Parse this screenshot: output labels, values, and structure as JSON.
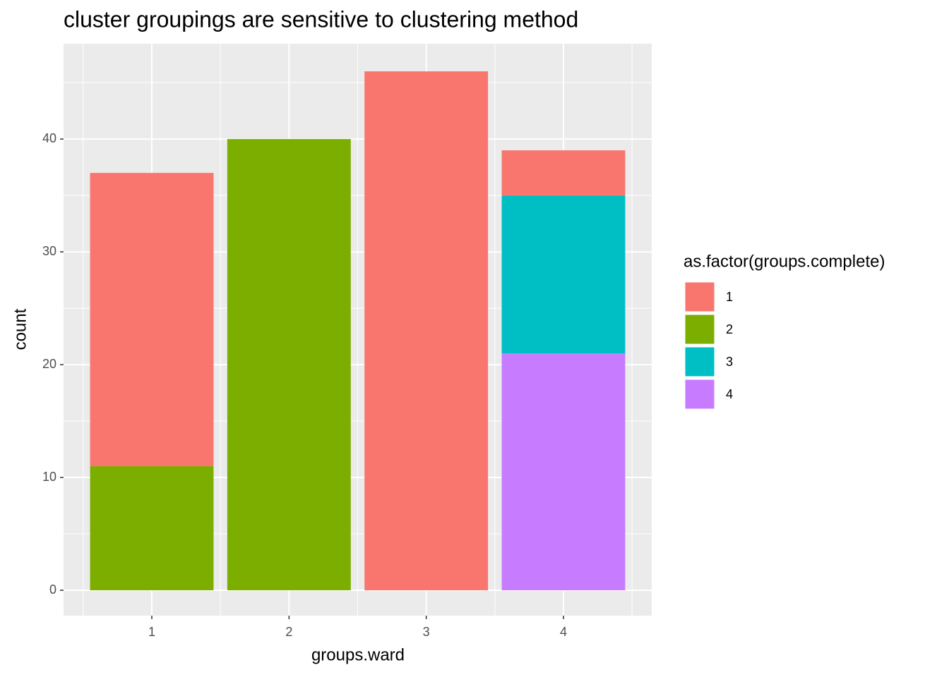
{
  "chart_data": {
    "type": "stacked_bar",
    "title": "cluster groupings are sensitive to clustering method",
    "x_label": "groups.ward",
    "y_label": "count",
    "categories": [
      "1",
      "2",
      "3",
      "4"
    ],
    "series": [
      {
        "name": "1",
        "color": "#F8766D",
        "values": [
          26,
          0,
          46,
          4
        ]
      },
      {
        "name": "2",
        "color": "#7CAE00",
        "values": [
          11,
          40,
          0,
          0
        ]
      },
      {
        "name": "3",
        "color": "#00BFC4",
        "values": [
          0,
          0,
          0,
          14
        ]
      },
      {
        "name": "4",
        "color": "#C77CFF",
        "values": [
          0,
          0,
          0,
          21
        ]
      }
    ],
    "legend_title": "as.factor(groups.complete)",
    "legend_position": "right",
    "ylim": [
      -2.25,
      48.45
    ],
    "yticks": [
      0,
      10,
      20,
      30,
      40
    ],
    "grid": true
  }
}
